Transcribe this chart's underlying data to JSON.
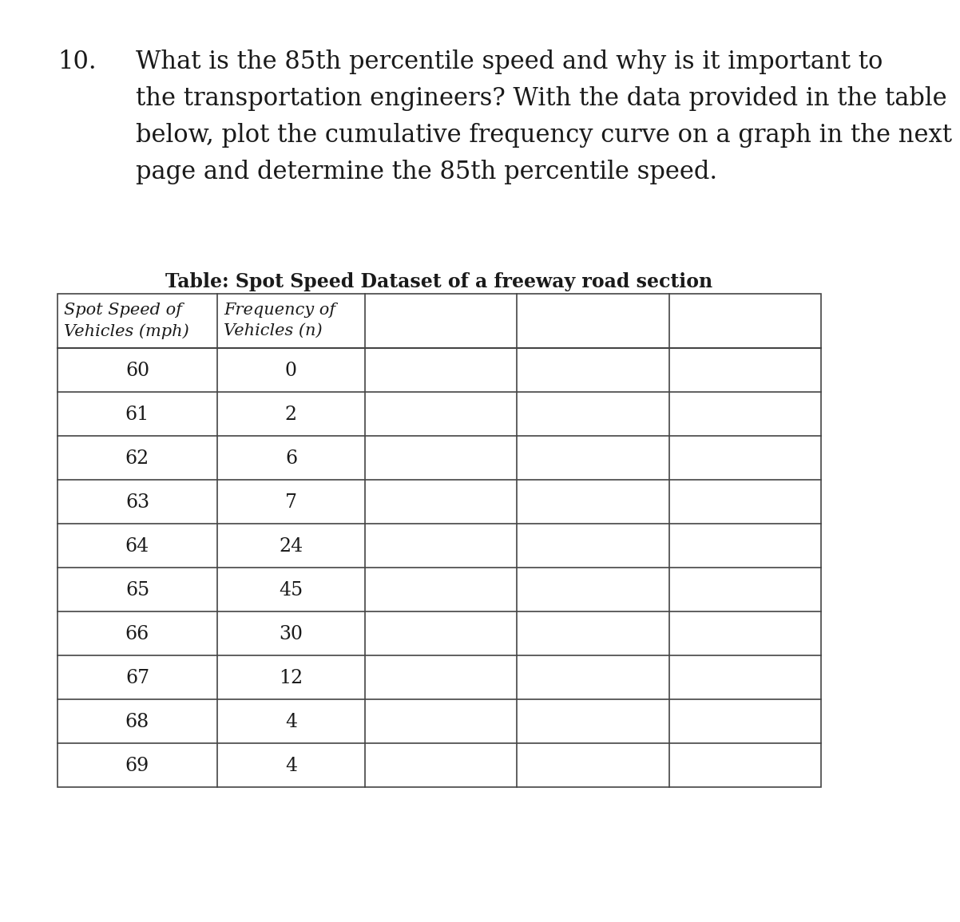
{
  "question_number": "10.",
  "question_text_lines": [
    "What is the 85th percentile speed and why is it important to",
    "the transportation engineers? With the data provided in the table",
    "below, plot the cumulative frequency curve on a graph in the next",
    "page and determine the 85th percentile speed."
  ],
  "table_title": "Table: Spot Speed Dataset of a freeway road section",
  "col1_header_line1": "Spot Speed of",
  "col1_header_line2": "Vehicles (mph)",
  "col2_header_line1": "Frequency of",
  "col2_header_line2": "Vehicles (n)",
  "speeds": [
    60,
    61,
    62,
    63,
    64,
    65,
    66,
    67,
    68,
    69
  ],
  "frequencies": [
    0,
    2,
    6,
    7,
    24,
    45,
    30,
    12,
    4,
    4
  ],
  "background_color": "#ffffff",
  "text_color": "#1a1a1a",
  "table_border_color": "#444444",
  "question_font_size": 22,
  "table_title_font_size": 17,
  "table_data_font_size": 17,
  "table_header_font_size": 15
}
